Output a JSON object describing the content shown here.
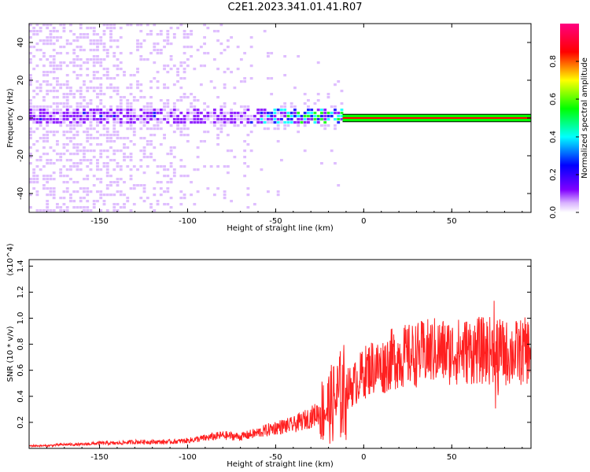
{
  "title": "C2E1.2023.341.01.41.R07",
  "chart_data": [
    {
      "type": "heatmap",
      "xlabel": "Height of straight line (km)",
      "ylabel": "Frequency (Hz)",
      "xlim": [
        -190,
        95
      ],
      "ylim": [
        -50,
        50
      ],
      "xticks": [
        -150,
        -100,
        -50,
        0,
        50
      ],
      "yticks": [
        -40,
        -20,
        0,
        20,
        40
      ],
      "colorbar": {
        "label": "Normalized spectral amplitude",
        "range": [
          0.0,
          1.0
        ],
        "ticks": [
          0.0,
          0.2,
          0.4,
          0.6,
          0.8
        ],
        "colormap": [
          "#ffffff",
          "#d9b3ff",
          "#8000ff",
          "#0000ff",
          "#00ffff",
          "#00ff00",
          "#ffff00",
          "#ff0000",
          "#ff0080"
        ]
      },
      "line": {
        "name": "carrier",
        "x": [
          -12,
          95
        ],
        "y": [
          0,
          0
        ],
        "band": [
          -2,
          2
        ]
      }
    },
    {
      "type": "line",
      "xlabel": "Height of straight line (km)",
      "ylabel": "SNR (10 * v/v)",
      "yscale_note": "(x10^4)",
      "xlim": [
        -190,
        95
      ],
      "ylim": [
        0,
        1.45
      ],
      "xticks": [
        -150,
        -100,
        -50,
        0,
        50
      ],
      "yticks": [
        0.2,
        0.4,
        0.6,
        0.8,
        1.0,
        1.2,
        1.4
      ],
      "color": "#ff2020",
      "series": [
        {
          "x": [
            -190,
            -180,
            -170,
            -160,
            -150,
            -140,
            -130,
            -120,
            -110,
            -100,
            -90,
            -80,
            -70,
            -60,
            -50,
            -40,
            -30,
            -20,
            -15,
            -12,
            -10,
            -5,
            0,
            5,
            10,
            15,
            20,
            30,
            40,
            50,
            60,
            70,
            75,
            80,
            90,
            95
          ],
          "values": [
            0.02,
            0.02,
            0.03,
            0.03,
            0.04,
            0.04,
            0.05,
            0.05,
            0.05,
            0.06,
            0.08,
            0.1,
            0.09,
            0.12,
            0.16,
            0.18,
            0.24,
            0.32,
            0.38,
            0.42,
            0.45,
            0.5,
            0.58,
            0.63,
            0.62,
            0.68,
            0.7,
            0.72,
            0.75,
            0.74,
            0.75,
            0.75,
            0.76,
            0.73,
            0.74,
            0.76
          ]
        }
      ]
    }
  ]
}
